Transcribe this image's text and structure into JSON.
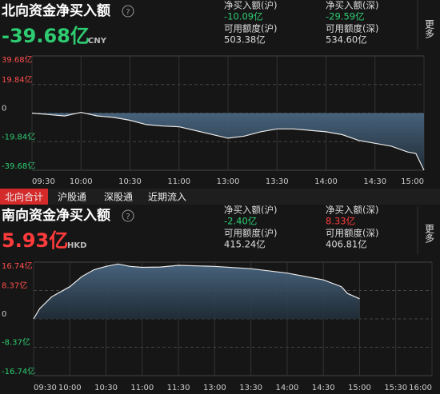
{
  "north": {
    "title": "北向资金净买入额",
    "value": "-39.68亿",
    "unit": "CNY",
    "stats": [
      {
        "label": "净买入额(沪)",
        "value": "-10.09亿"
      },
      {
        "label": "净买入额(深)",
        "value": "-29.59亿"
      },
      {
        "label": "可用额度(沪)",
        "value": "503.38亿"
      },
      {
        "label": "可用额度(深)",
        "value": "534.60亿"
      }
    ],
    "more": "更多"
  },
  "tabs": [
    "北向合计",
    "沪股通",
    "深股通",
    "近期流入"
  ],
  "south": {
    "title": "南向资金净买入额",
    "value": "5.93亿",
    "unit": "HKD",
    "stats": [
      {
        "label": "净买入额(沪)",
        "value": "-2.40亿"
      },
      {
        "label": "净买入额(深)",
        "value": "8.33亿"
      },
      {
        "label": "可用额度(沪)",
        "value": "415.24亿"
      },
      {
        "label": "可用额度(深)",
        "value": "406.81亿"
      }
    ],
    "more": "更多"
  },
  "chart_data": [
    {
      "type": "area",
      "color": "#e8e8e8",
      "x": [
        "09:30",
        "09:40",
        "09:50",
        "10:00",
        "10:10",
        "10:20",
        "10:30",
        "10:40",
        "10:50",
        "11:00",
        "13:00",
        "13:10",
        "13:20",
        "13:30",
        "13:40",
        "13:50",
        "14:00",
        "14:10",
        "14:20",
        "14:30",
        "14:40",
        "14:50",
        "14:55",
        "15:00"
      ],
      "values": [
        0,
        -1,
        -2,
        0.5,
        -2,
        -3,
        -5,
        -8,
        -9,
        -9.5,
        -17.4,
        -16,
        -13,
        -11,
        -11,
        -12,
        -13,
        -15,
        -19,
        -21,
        -23,
        -27,
        -28,
        -39.68
      ],
      "xticks": [
        "09:30",
        "10:00",
        "10:30",
        "11:00",
        "13:00",
        "13:30",
        "14:00",
        "14:30",
        "15:00"
      ],
      "ylim": [
        -39.68,
        39.68
      ],
      "yticks": [
        {
          "value": 39.68,
          "label": "39.68亿"
        },
        {
          "value": 19.84,
          "label": "19.84亿"
        },
        0,
        {
          "value": -19.84,
          "label": "-19.84亿"
        },
        {
          "value": -39.68,
          "label": "-39.68亿"
        }
      ]
    },
    {
      "type": "area",
      "color": "#e8e8e8",
      "x": [
        "09:30",
        "09:35",
        "09:45",
        "10:00",
        "10:10",
        "10:20",
        "10:30",
        "10:40",
        "10:50",
        "11:00",
        "11:15",
        "11:30",
        "13:00",
        "13:30",
        "14:00",
        "14:30",
        "14:45",
        "14:50",
        "15:00"
      ],
      "values": [
        0,
        3,
        6.5,
        9.5,
        12.5,
        14.5,
        15.5,
        16.2,
        15.5,
        15.2,
        15.3,
        15.8,
        15.5,
        14.8,
        13.5,
        11.5,
        9.5,
        7.5,
        5.93
      ],
      "xticks": [
        "09:30",
        "10:00",
        "10:30",
        "11:00",
        "11:30",
        "13:00",
        "13:30",
        "14:00",
        "14:30",
        "15:00",
        "15:30",
        "16:00"
      ],
      "ylim": [
        -16.74,
        16.74
      ],
      "yticks": [
        {
          "value": 16.74,
          "label": "16.74亿"
        },
        {
          "value": 8.37,
          "label": "8.37亿"
        },
        0,
        {
          "value": -8.37,
          "label": "-8.37亿"
        },
        {
          "value": -16.74,
          "label": "-16.74亿"
        }
      ]
    }
  ]
}
